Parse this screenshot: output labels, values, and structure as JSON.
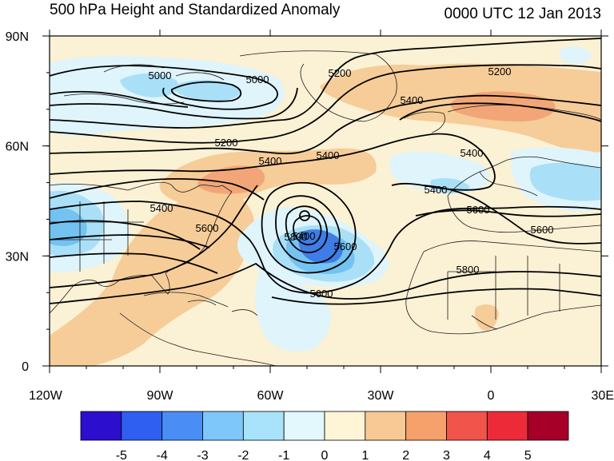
{
  "title_left": "500 hPa Height and Standardized Anomaly",
  "title_right": "0000 UTC 12 Jan 2013",
  "map": {
    "lon_range": [
      -120,
      30
    ],
    "lat_range": [
      0,
      90
    ],
    "lon_ticks": [
      "120W",
      "90W",
      "60W",
      "30W",
      "0",
      "30E"
    ],
    "lat_ticks": [
      "90N",
      "60N",
      "30N",
      "0"
    ]
  },
  "contour_labels": [
    "5000",
    "5000",
    "5200",
    "5200",
    "5200",
    "5400",
    "5400",
    "5400",
    "5400",
    "5400",
    "5400",
    "5400",
    "5600",
    "5600",
    "5600",
    "5600",
    "5600",
    "5800",
    "5800"
  ],
  "colorbar": {
    "labels": [
      "-5",
      "-4",
      "-3",
      "-2",
      "-1",
      "0",
      "1",
      "2",
      "3",
      "4",
      "5"
    ],
    "colors": [
      "#2c0ecf",
      "#2f5ff0",
      "#4a8ef5",
      "#7ec7fa",
      "#a8e3fb",
      "#e2f8fc",
      "#fdf5d6",
      "#f8c995",
      "#f6a06c",
      "#f1544a",
      "#ec2a38",
      "#a60028"
    ]
  },
  "anomaly_colors": {
    "pos1": "#fbf1d4",
    "pos2": "#f6cc98",
    "pos3": "#f2a677",
    "neg1": "#dff4fb",
    "neg2": "#a9e0f7",
    "neg3": "#73c2f0",
    "neg4": "#3e7ce6",
    "neg5": "#2d44cf"
  }
}
